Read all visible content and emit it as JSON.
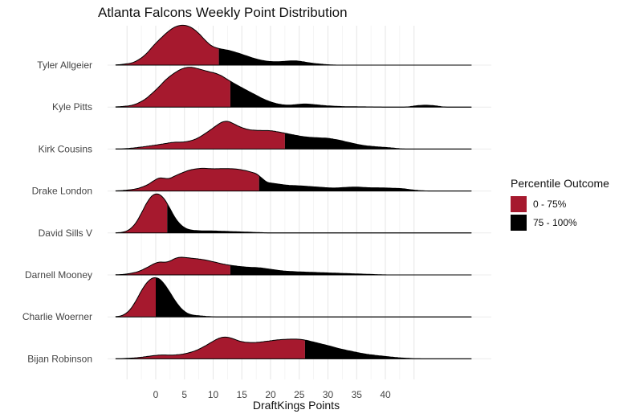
{
  "chart_data": {
    "type": "ridgeline",
    "title": "Atlanta Falcons Weekly Point Distribution",
    "xlabel": "DraftKings Points",
    "ylabel": "",
    "xlim": [
      -7,
      55
    ],
    "x_ticks": [
      0,
      5,
      10,
      15,
      20,
      25,
      30,
      35,
      40
    ],
    "legend": {
      "title": "Percentile Outcome",
      "position": "right",
      "entries": [
        {
          "label": "0 - 75%",
          "color": "#a6192e"
        },
        {
          "label": "75 - 100%",
          "color": "#000000"
        }
      ]
    },
    "series": [
      {
        "name": "Tyler Allgeier",
        "p75": 11,
        "density": [
          [
            -7,
            0
          ],
          [
            -4,
            0.05
          ],
          [
            -2,
            0.22
          ],
          [
            0,
            0.55
          ],
          [
            2,
            0.82
          ],
          [
            3,
            0.93
          ],
          [
            4,
            0.99
          ],
          [
            5,
            1.0
          ],
          [
            6,
            0.96
          ],
          [
            7,
            0.86
          ],
          [
            8,
            0.72
          ],
          [
            9,
            0.55
          ],
          [
            10,
            0.45
          ],
          [
            11,
            0.41
          ],
          [
            13,
            0.36
          ],
          [
            15,
            0.27
          ],
          [
            17,
            0.17
          ],
          [
            19,
            0.1
          ],
          [
            21,
            0.08
          ],
          [
            23,
            0.1
          ],
          [
            24,
            0.11
          ],
          [
            25,
            0.1
          ],
          [
            27,
            0.05
          ],
          [
            29,
            0.02
          ],
          [
            31,
            0
          ],
          [
            55,
            0
          ]
        ]
      },
      {
        "name": "Kyle Pitts",
        "p75": 13,
        "density": [
          [
            -7,
            0
          ],
          [
            -4,
            0.04
          ],
          [
            -2,
            0.17
          ],
          [
            0,
            0.42
          ],
          [
            2,
            0.72
          ],
          [
            4,
            0.92
          ],
          [
            5,
            0.98
          ],
          [
            6,
            1.0
          ],
          [
            7,
            0.97
          ],
          [
            9,
            0.89
          ],
          [
            11,
            0.82
          ],
          [
            13,
            0.64
          ],
          [
            15,
            0.48
          ],
          [
            17,
            0.33
          ],
          [
            19,
            0.18
          ],
          [
            21,
            0.08
          ],
          [
            23,
            0.04
          ],
          [
            25,
            0.07
          ],
          [
            26,
            0.08
          ],
          [
            27,
            0.07
          ],
          [
            29,
            0.04
          ],
          [
            31,
            0.02
          ],
          [
            33,
            0.01
          ],
          [
            40,
            0
          ],
          [
            44,
            0
          ],
          [
            45,
            0.03
          ],
          [
            47,
            0.05
          ],
          [
            49,
            0.03
          ],
          [
            50,
            0
          ],
          [
            55,
            0
          ]
        ]
      },
      {
        "name": "Kirk Cousins",
        "p75": 22.5,
        "density": [
          [
            -7,
            0
          ],
          [
            -5,
            0.01
          ],
          [
            -3,
            0.04
          ],
          [
            -1,
            0.08
          ],
          [
            1,
            0.12
          ],
          [
            3,
            0.17
          ],
          [
            5,
            0.17
          ],
          [
            7,
            0.24
          ],
          [
            9,
            0.42
          ],
          [
            11,
            0.63
          ],
          [
            12,
            0.71
          ],
          [
            13,
            0.68
          ],
          [
            14,
            0.59
          ],
          [
            16,
            0.48
          ],
          [
            18,
            0.46
          ],
          [
            20,
            0.46
          ],
          [
            22,
            0.41
          ],
          [
            24,
            0.35
          ],
          [
            26,
            0.3
          ],
          [
            28,
            0.28
          ],
          [
            30,
            0.27
          ],
          [
            32,
            0.22
          ],
          [
            34,
            0.15
          ],
          [
            36,
            0.09
          ],
          [
            38,
            0.06
          ],
          [
            41,
            0.03
          ],
          [
            43,
            0
          ],
          [
            55,
            0
          ]
        ]
      },
      {
        "name": "Drake London",
        "p75": 18,
        "density": [
          [
            -7,
            0
          ],
          [
            -5,
            0.02
          ],
          [
            -3,
            0.06
          ],
          [
            -1,
            0.18
          ],
          [
            0,
            0.3
          ],
          [
            1,
            0.35
          ],
          [
            2,
            0.28
          ],
          [
            4,
            0.42
          ],
          [
            6,
            0.53
          ],
          [
            8,
            0.57
          ],
          [
            10,
            0.55
          ],
          [
            12,
            0.56
          ],
          [
            14,
            0.55
          ],
          [
            16,
            0.5
          ],
          [
            18,
            0.41
          ],
          [
            19,
            0.22
          ],
          [
            21,
            0.18
          ],
          [
            23,
            0.14
          ],
          [
            25,
            0.13
          ],
          [
            27,
            0.11
          ],
          [
            29,
            0.09
          ],
          [
            31,
            0.07
          ],
          [
            33,
            0.09
          ],
          [
            35,
            0.1
          ],
          [
            37,
            0.08
          ],
          [
            39,
            0.08
          ],
          [
            41,
            0.07
          ],
          [
            43,
            0.06
          ],
          [
            45,
            0.02
          ],
          [
            47,
            0
          ],
          [
            55,
            0
          ]
        ]
      },
      {
        "name": "David Sills V",
        "p75": 2,
        "density": [
          [
            -7,
            0
          ],
          [
            -6,
            0.01
          ],
          [
            -5,
            0.04
          ],
          [
            -4,
            0.14
          ],
          [
            -3,
            0.34
          ],
          [
            -2,
            0.64
          ],
          [
            -1,
            0.9
          ],
          [
            0,
            1.0
          ],
          [
            1,
            0.95
          ],
          [
            2,
            0.75
          ],
          [
            3,
            0.45
          ],
          [
            4,
            0.24
          ],
          [
            5,
            0.12
          ],
          [
            6,
            0.07
          ],
          [
            8,
            0.05
          ],
          [
            10,
            0.05
          ],
          [
            12,
            0.04
          ],
          [
            14,
            0.03
          ],
          [
            16,
            0.02
          ],
          [
            18,
            0.01
          ],
          [
            20,
            0
          ],
          [
            55,
            0
          ]
        ]
      },
      {
        "name": "Darnell Mooney",
        "p75": 13,
        "density": [
          [
            -7,
            0
          ],
          [
            -5,
            0.02
          ],
          [
            -3,
            0.08
          ],
          [
            -1,
            0.22
          ],
          [
            0,
            0.31
          ],
          [
            1,
            0.33
          ],
          [
            2,
            0.3
          ],
          [
            3,
            0.39
          ],
          [
            4,
            0.45
          ],
          [
            6,
            0.42
          ],
          [
            8,
            0.39
          ],
          [
            10,
            0.33
          ],
          [
            12,
            0.26
          ],
          [
            14,
            0.22
          ],
          [
            16,
            0.19
          ],
          [
            18,
            0.18
          ],
          [
            20,
            0.14
          ],
          [
            22,
            0.1
          ],
          [
            24,
            0.08
          ],
          [
            26,
            0.07
          ],
          [
            28,
            0.06
          ],
          [
            30,
            0.05
          ],
          [
            32,
            0.04
          ],
          [
            34,
            0.03
          ],
          [
            36,
            0.02
          ],
          [
            38,
            0.01
          ],
          [
            40,
            0
          ],
          [
            55,
            0
          ]
        ]
      },
      {
        "name": "Charlie Woerner",
        "p75": 0,
        "density": [
          [
            -7,
            0
          ],
          [
            -6,
            0.02
          ],
          [
            -5,
            0.09
          ],
          [
            -4,
            0.25
          ],
          [
            -3,
            0.52
          ],
          [
            -2,
            0.78
          ],
          [
            -1,
            0.95
          ],
          [
            0,
            1.0
          ],
          [
            1,
            0.92
          ],
          [
            2,
            0.72
          ],
          [
            3,
            0.48
          ],
          [
            4,
            0.27
          ],
          [
            5,
            0.12
          ],
          [
            6,
            0.05
          ],
          [
            8,
            0.02
          ],
          [
            10,
            0
          ],
          [
            55,
            0
          ]
        ]
      },
      {
        "name": "Bijan Robinson",
        "p75": 26,
        "density": [
          [
            -7,
            0
          ],
          [
            -5,
            0.01
          ],
          [
            -3,
            0.03
          ],
          [
            -1,
            0.07
          ],
          [
            1,
            0.1
          ],
          [
            3,
            0.09
          ],
          [
            5,
            0.12
          ],
          [
            7,
            0.2
          ],
          [
            9,
            0.35
          ],
          [
            10,
            0.44
          ],
          [
            11,
            0.52
          ],
          [
            12,
            0.55
          ],
          [
            13,
            0.53
          ],
          [
            14,
            0.47
          ],
          [
            15,
            0.42
          ],
          [
            17,
            0.4
          ],
          [
            19,
            0.43
          ],
          [
            21,
            0.47
          ],
          [
            23,
            0.49
          ],
          [
            25,
            0.49
          ],
          [
            26,
            0.47
          ],
          [
            28,
            0.4
          ],
          [
            30,
            0.33
          ],
          [
            32,
            0.25
          ],
          [
            34,
            0.19
          ],
          [
            36,
            0.13
          ],
          [
            38,
            0.09
          ],
          [
            40,
            0.06
          ],
          [
            42,
            0.03
          ],
          [
            44,
            0.01
          ],
          [
            46,
            0
          ],
          [
            55,
            0
          ]
        ]
      }
    ]
  }
}
